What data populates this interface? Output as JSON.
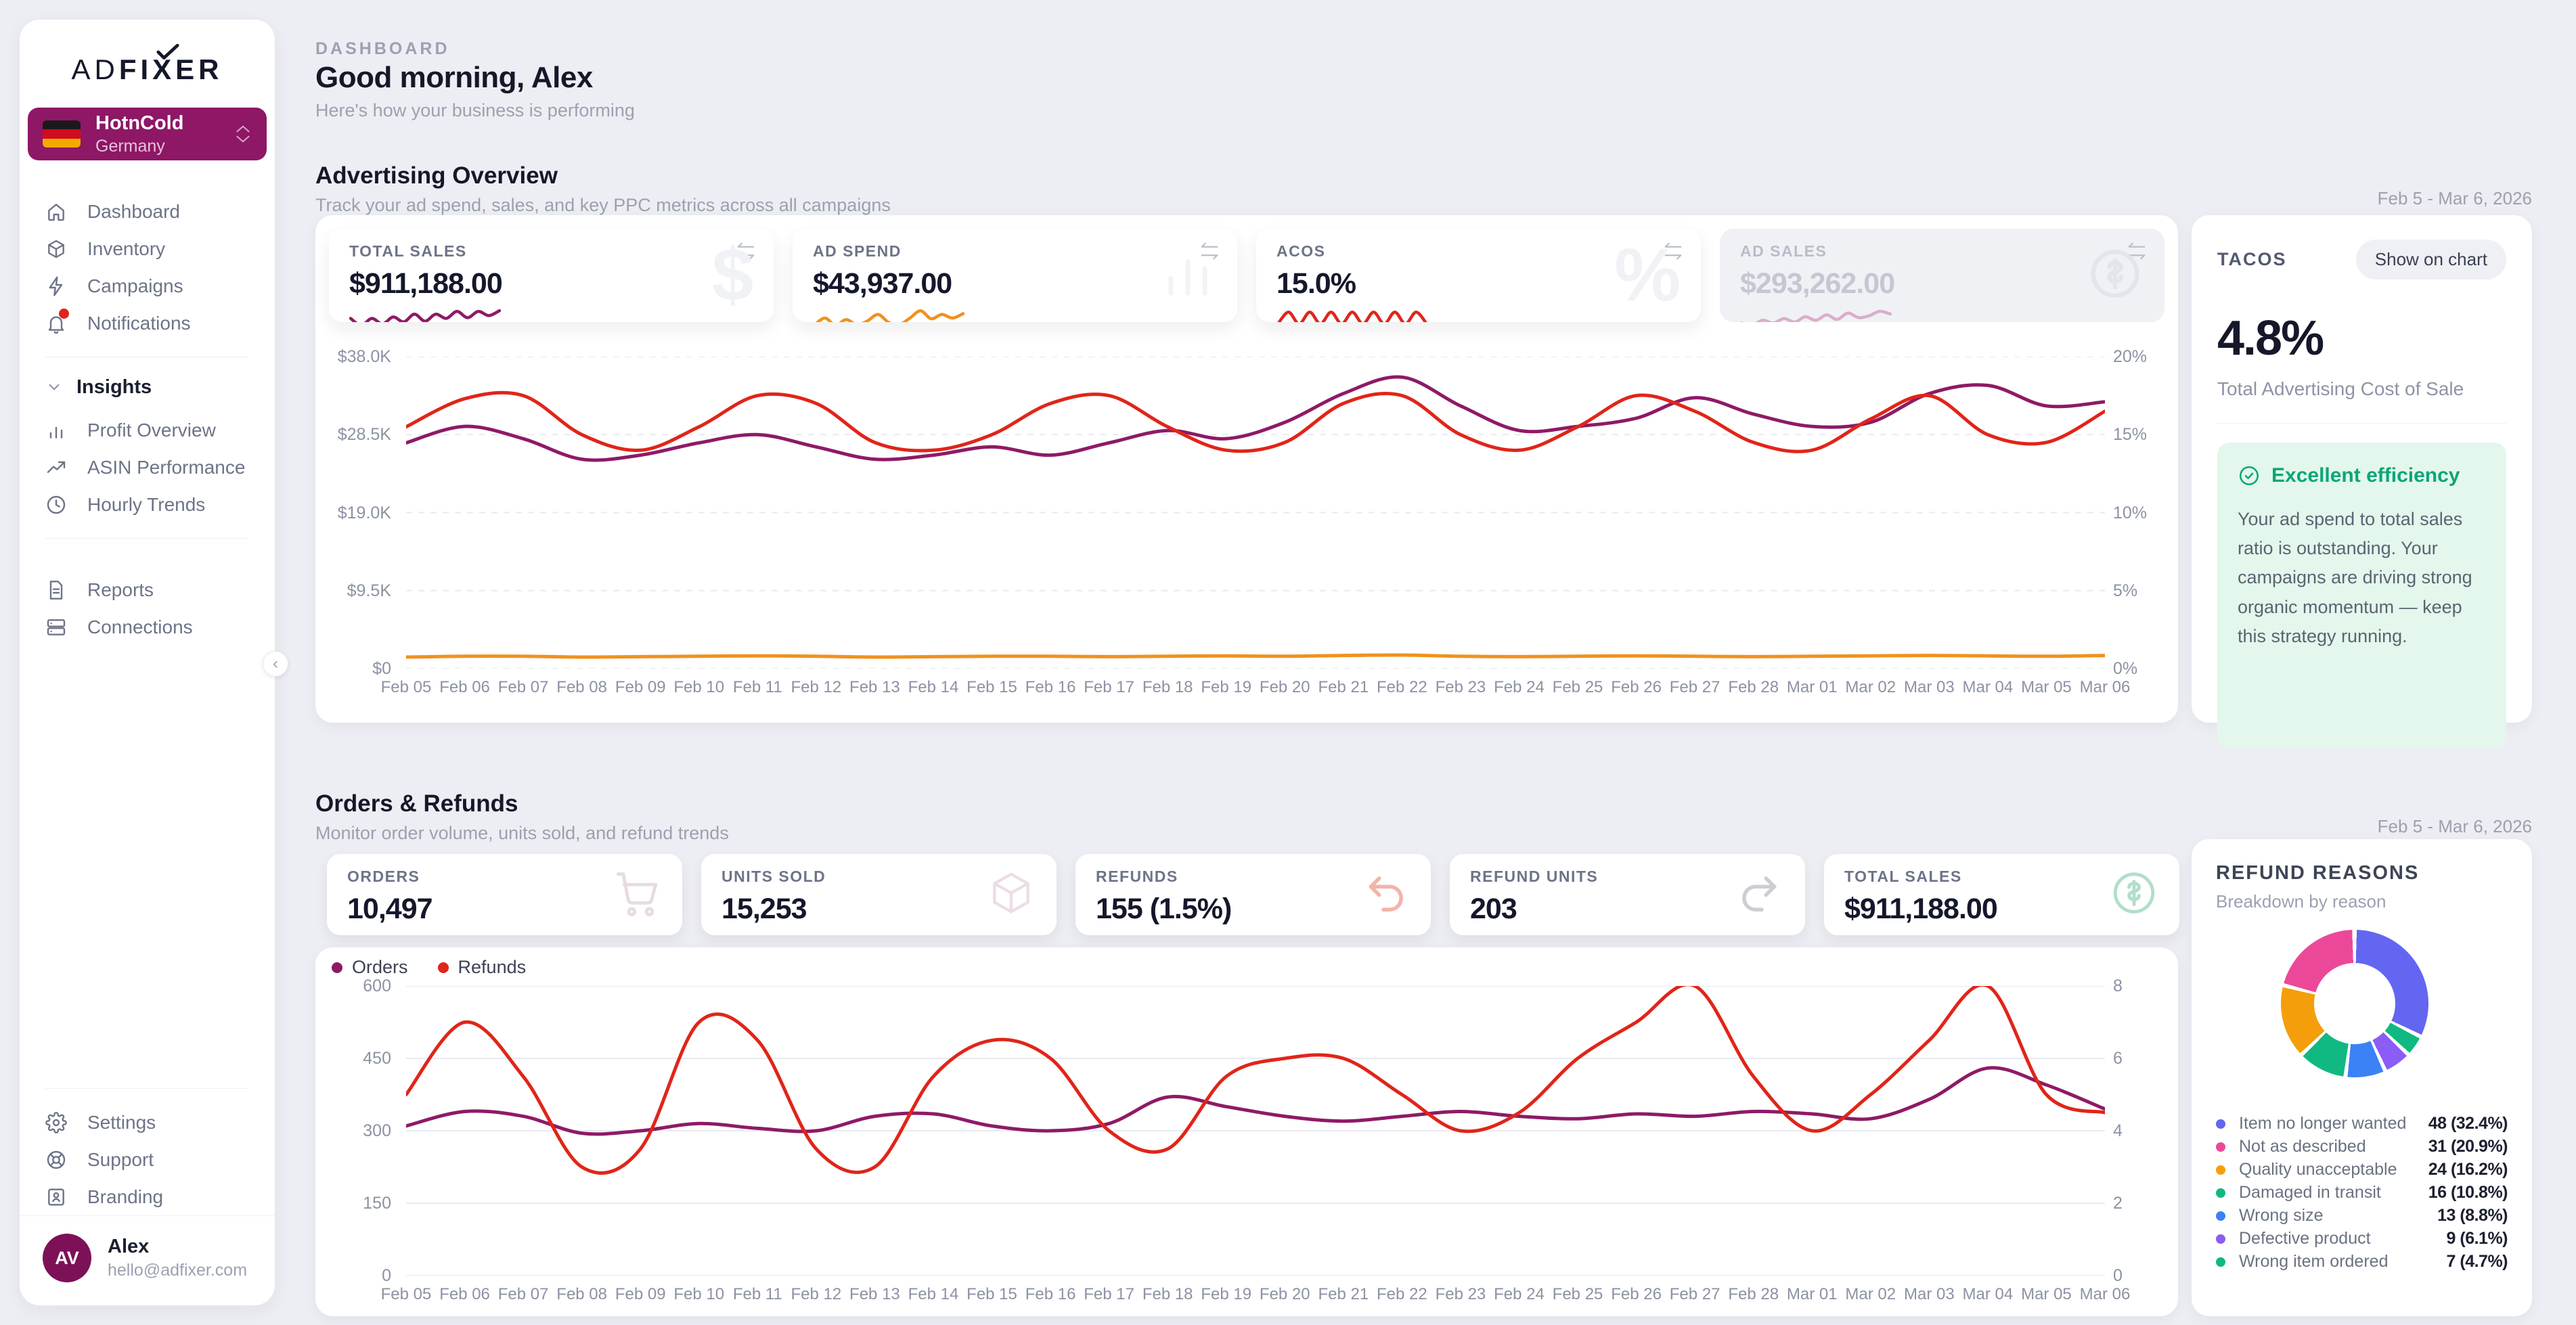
{
  "sidebar": {
    "logo": {
      "part1": "AD",
      "part2a": "FI",
      "part2x": "X",
      "part2b": "ER"
    },
    "account": {
      "name": "HotnCold",
      "country": "Germany"
    },
    "nav": [
      {
        "label": "Dashboard"
      },
      {
        "label": "Inventory"
      },
      {
        "label": "Campaigns"
      },
      {
        "label": "Notifications"
      }
    ],
    "insights_label": "Insights",
    "insights": [
      {
        "label": "Profit Overview"
      },
      {
        "label": "ASIN Performance"
      },
      {
        "label": "Hourly Trends"
      }
    ],
    "secondary": [
      {
        "label": "Reports"
      },
      {
        "label": "Connections"
      }
    ],
    "footer": [
      {
        "label": "Settings"
      },
      {
        "label": "Support"
      },
      {
        "label": "Branding"
      }
    ],
    "user": {
      "initials": "AV",
      "name": "Alex",
      "email": "hello@adfixer.com"
    }
  },
  "header": {
    "breadcrumb": "DASHBOARD",
    "title": "Good morning, Alex",
    "subtitle": "Here's how your business is performing"
  },
  "advertising": {
    "title": "Advertising Overview",
    "subtitle": "Track your ad spend, sales, and key PPC metrics across all campaigns",
    "date_range": "Feb 5 - Mar 6, 2026",
    "cards": [
      {
        "label": "TOTAL SALES",
        "value": "$911,188.00",
        "accent": "#8e1a66",
        "watermark": "$",
        "spark": [
          2,
          1,
          2,
          1.2,
          2.2,
          1.5,
          2.6,
          1.6,
          2.6,
          2,
          3,
          2.1,
          3,
          2.4,
          3.1
        ]
      },
      {
        "label": "AD SPEND",
        "value": "$43,937.00",
        "accent": "#f0911e",
        "watermark": "",
        "spark": [
          1.4,
          2.4,
          1.4,
          2.2,
          1.5,
          2,
          2.9,
          1.8,
          1.5,
          2.4,
          3.4,
          2.3,
          2.9,
          2.4,
          3
        ]
      },
      {
        "label": "ACOS",
        "value": "15.0%",
        "accent": "#e02519",
        "watermark": "%",
        "spark": [
          2,
          3,
          2,
          3,
          2,
          3,
          2,
          3,
          2,
          3,
          2,
          3,
          2,
          3,
          2
        ]
      },
      {
        "label": "AD SALES",
        "value": "$293,262.00",
        "accent": "#d9aec9",
        "watermark": "$",
        "spark": [
          2,
          1.8,
          2.3,
          2,
          2.5,
          2.1,
          2.7,
          2.3,
          2.9,
          2.4,
          3.1,
          2.6,
          2.8,
          3.3,
          3
        ]
      }
    ],
    "tacos": {
      "label": "TACOS",
      "button": "Show on chart",
      "value": "4.8%",
      "description": "Total Advertising Cost of Sale",
      "callout_title": "Excellent efficiency",
      "callout_body": "Your ad spend to total sales ratio is outstanding. Your campaigns are driving strong organic momentum — keep this strategy running."
    }
  },
  "orders": {
    "title": "Orders & Refunds",
    "subtitle": "Monitor order volume, units sold, and refund trends",
    "date_range": "Feb 5 - Mar 6, 2026",
    "cards": [
      {
        "label": "ORDERS",
        "value": "10,497",
        "icon": "cart"
      },
      {
        "label": "UNITS SOLD",
        "value": "15,253",
        "icon": "box"
      },
      {
        "label": "REFUNDS",
        "value": "155 (1.5%)",
        "icon": "undo"
      },
      {
        "label": "REFUND UNITS",
        "value": "203",
        "icon": "redo"
      },
      {
        "label": "TOTAL SALES",
        "value": "$911,188.00",
        "icon": "dollar"
      }
    ],
    "legend": [
      {
        "label": "Orders",
        "color": "#8e1a66"
      },
      {
        "label": "Refunds",
        "color": "#e02519"
      }
    ]
  },
  "refund_reasons": {
    "title": "REFUND REASONS",
    "subtitle": "Breakdown by reason",
    "items": [
      {
        "label": "Item no longer wanted",
        "value": "48 (32.4%)",
        "color": "#6366f1"
      },
      {
        "label": "Not as described",
        "value": "31 (20.9%)",
        "color": "#ec4899"
      },
      {
        "label": "Quality unacceptable",
        "value": "24 (16.2%)",
        "color": "#f59e0b"
      },
      {
        "label": "Damaged in transit",
        "value": "16 (10.8%)",
        "color": "#10b981"
      },
      {
        "label": "Wrong size",
        "value": "13 (8.8%)",
        "color": "#3b82f6"
      },
      {
        "label": "Defective product",
        "value": "9 (6.1%)",
        "color": "#8b5cf6"
      },
      {
        "label": "Wrong item ordered",
        "value": "7 (4.7%)",
        "color": "#10b981"
      }
    ]
  },
  "chart_data": [
    {
      "type": "line",
      "title": "Advertising Overview",
      "x": [
        "Feb 05",
        "Feb 06",
        "Feb 07",
        "Feb 08",
        "Feb 09",
        "Feb 10",
        "Feb 11",
        "Feb 12",
        "Feb 13",
        "Feb 14",
        "Feb 15",
        "Feb 16",
        "Feb 17",
        "Feb 18",
        "Feb 19",
        "Feb 20",
        "Feb 21",
        "Feb 22",
        "Feb 23",
        "Feb 24",
        "Feb 25",
        "Feb 26",
        "Feb 27",
        "Feb 28",
        "Mar 01",
        "Mar 02",
        "Mar 03",
        "Mar 04",
        "Mar 05",
        "Mar 06"
      ],
      "axes": {
        "left": {
          "min": 0,
          "max": 38000,
          "ticks": [
            "$38.0K",
            "$28.5K",
            "$19.0K",
            "$9.5K",
            "$0"
          ]
        },
        "right": {
          "min": 0,
          "max": 20,
          "ticks": [
            "20%",
            "15%",
            "10%",
            "5%",
            "0%"
          ]
        }
      },
      "grid": "dashed",
      "series": [
        {
          "name": "Total Sales",
          "axis": "left",
          "color": "#8e1a66",
          "values": [
            27500,
            29500,
            28000,
            25500,
            26000,
            27500,
            28500,
            27000,
            25500,
            26000,
            27000,
            26000,
            27500,
            29000,
            28000,
            30000,
            33500,
            35500,
            32000,
            29000,
            29500,
            30500,
            33000,
            31000,
            29500,
            30000,
            33500,
            34500,
            32000,
            32500
          ]
        },
        {
          "name": "Ad Spend",
          "axis": "left",
          "color": "#f0911e",
          "values": [
            1400,
            1500,
            1500,
            1400,
            1450,
            1500,
            1550,
            1500,
            1400,
            1450,
            1500,
            1500,
            1450,
            1500,
            1550,
            1500,
            1600,
            1650,
            1500,
            1450,
            1500,
            1550,
            1500,
            1450,
            1500,
            1550,
            1600,
            1550,
            1500,
            1600
          ]
        },
        {
          "name": "ACOS",
          "axis": "right",
          "color": "#e02519",
          "values": [
            15.5,
            17.3,
            17.5,
            15,
            14,
            15.5,
            17.5,
            17,
            14.5,
            14,
            15,
            17,
            17.5,
            15.5,
            14,
            14.5,
            17,
            17.5,
            15,
            14,
            15.5,
            17.5,
            16.5,
            14.5,
            14,
            16,
            17.5,
            15,
            14.5,
            16.5
          ]
        }
      ]
    },
    {
      "type": "line",
      "title": "Orders & Refunds",
      "x": [
        "Feb 05",
        "Feb 06",
        "Feb 07",
        "Feb 08",
        "Feb 09",
        "Feb 10",
        "Feb 11",
        "Feb 12",
        "Feb 13",
        "Feb 14",
        "Feb 15",
        "Feb 16",
        "Feb 17",
        "Feb 18",
        "Feb 19",
        "Feb 20",
        "Feb 21",
        "Feb 22",
        "Feb 23",
        "Feb 24",
        "Feb 25",
        "Feb 26",
        "Feb 27",
        "Feb 28",
        "Mar 01",
        "Mar 02",
        "Mar 03",
        "Mar 04",
        "Mar 05",
        "Mar 06"
      ],
      "axes": {
        "left": {
          "min": 0,
          "max": 600,
          "ticks": [
            "600",
            "450",
            "300",
            "150",
            "0"
          ]
        },
        "right": {
          "min": 0,
          "max": 8,
          "ticks": [
            "8",
            "6",
            "4",
            "2",
            "0"
          ]
        }
      },
      "grid": "solid",
      "series": [
        {
          "name": "Orders",
          "axis": "left",
          "color": "#8e1a66",
          "values": [
            310,
            340,
            330,
            295,
            300,
            315,
            305,
            300,
            330,
            335,
            310,
            300,
            315,
            370,
            350,
            330,
            320,
            330,
            340,
            330,
            325,
            335,
            330,
            340,
            335,
            325,
            365,
            430,
            395,
            345
          ]
        },
        {
          "name": "Refunds",
          "axis": "right",
          "color": "#e02519",
          "values": [
            5,
            7,
            5.5,
            3,
            3.5,
            7,
            6.5,
            3.5,
            3,
            5.5,
            6.5,
            6,
            4,
            3.5,
            5.5,
            6,
            6,
            5,
            4,
            4.5,
            6,
            7,
            8,
            5.5,
            4,
            5,
            6.5,
            8,
            5,
            4.5
          ]
        }
      ]
    },
    {
      "type": "pie",
      "title": "Refund Reasons",
      "labels": [
        "Item no longer wanted",
        "Not as described",
        "Quality unacceptable",
        "Damaged in transit",
        "Wrong size",
        "Defective product",
        "Wrong item ordered"
      ],
      "counts": [
        48,
        31,
        24,
        16,
        13,
        9,
        7
      ],
      "percents": [
        32.4,
        20.9,
        16.2,
        10.8,
        8.8,
        6.1,
        4.7
      ],
      "colors": [
        "#6366f1",
        "#ec4899",
        "#f59e0b",
        "#10b981",
        "#3b82f6",
        "#8b5cf6",
        "#10b981"
      ],
      "display_order": [
        0,
        6,
        5,
        4,
        3,
        2,
        1
      ]
    }
  ]
}
